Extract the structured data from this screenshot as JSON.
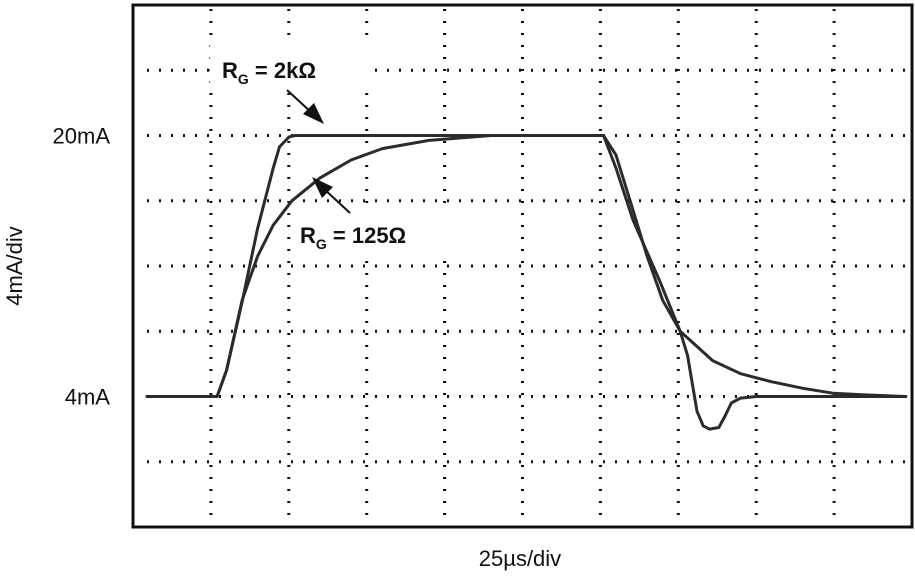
{
  "chart_data": {
    "type": "line",
    "ylabel": "4mA/div",
    "xlabel": "25µs/div",
    "xlim": [
      0,
      250
    ],
    "ylim": [
      -4,
      28
    ],
    "yticks": [
      {
        "value": 20,
        "label": "20mA"
      },
      {
        "value": 4,
        "label": "4mA"
      }
    ],
    "xgrid": [
      25,
      50,
      75,
      100,
      125,
      150,
      175,
      200,
      225
    ],
    "ygrid": [
      0,
      4,
      8,
      12,
      16,
      20,
      24
    ],
    "grid": true,
    "series": [
      {
        "color": "#2b2b2b",
        "x": [
          4.5,
          27,
          30,
          35,
          40,
          45,
          47,
          50,
          52,
          151,
          155,
          160,
          165,
          170,
          175.6,
          178,
          181,
          183,
          185,
          188,
          190,
          192,
          195,
          200,
          248
        ],
        "values": [
          4,
          4,
          5.6,
          9.8,
          14.3,
          18.0,
          19.3,
          19.9,
          20,
          20,
          18.8,
          15.7,
          12.6,
          9.9,
          8.0,
          6.5,
          3.1,
          2.2,
          2.0,
          2.1,
          2.8,
          3.6,
          3.9,
          4.0,
          4.0
        ]
      },
      {
        "color": "#2b2b2b",
        "x": [
          4.5,
          27,
          30,
          35,
          40,
          45,
          51,
          60,
          70,
          80,
          95,
          115,
          151,
          155,
          160.5,
          169,
          175.6,
          186,
          195,
          205,
          215,
          224.6,
          235,
          248
        ],
        "values": [
          4,
          4,
          5.6,
          9.9,
          12.6,
          14.5,
          16.0,
          17.4,
          18.5,
          19.2,
          19.7,
          20,
          20,
          18.0,
          14.8,
          11.1,
          8.0,
          6.2,
          5.4,
          4.9,
          4.5,
          4.2,
          4.1,
          4.0
        ]
      }
    ],
    "annotations": [
      {
        "text": "R",
        "sub": "G",
        "rest": " = 2kΩ"
      },
      {
        "text": "R",
        "sub": "G",
        "rest": " = 125Ω"
      }
    ]
  }
}
